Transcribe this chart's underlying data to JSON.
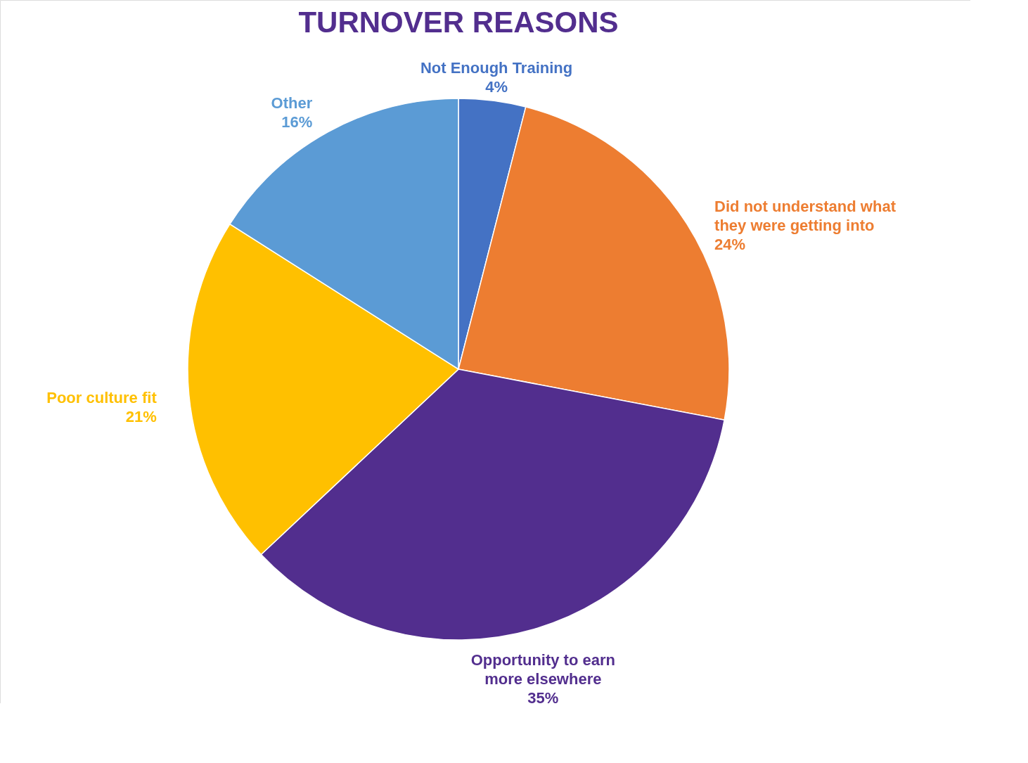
{
  "chart_data": {
    "type": "pie",
    "title": "TURNOVER REASONS",
    "categories": [
      "Not Enough Training",
      "Did not understand what they were getting into",
      "Opportunity to earn more elsewhere",
      "Poor culture fit",
      "Other"
    ],
    "values": [
      4,
      24,
      35,
      21,
      16
    ],
    "colors": [
      "#4472c4",
      "#ed7d31",
      "#522e8e",
      "#ffc000",
      "#5b9bd5"
    ],
    "value_labels": [
      "4%",
      "24%",
      "35%",
      "21%",
      "16%"
    ],
    "legend": false
  }
}
